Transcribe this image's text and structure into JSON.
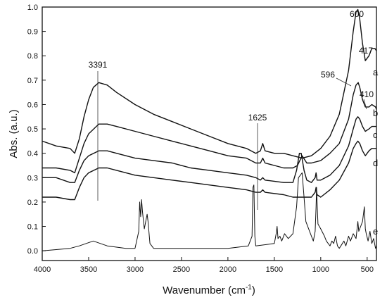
{
  "chart_data": {
    "type": "line",
    "xlabel": "Wavenumber (cm-1)",
    "xlabel_main": "Wavenumber (cm",
    "xlabel_sup": "-1",
    "xlabel_close": ")",
    "ylabel": "Abs. (a.u.)",
    "xlim": [
      4000,
      400
    ],
    "x_reversed": true,
    "ylim": [
      -0.04,
      1.0
    ],
    "xticks": [
      4000,
      3500,
      3000,
      2500,
      2000,
      1500,
      1000,
      500
    ],
    "yticks": [
      "0.0",
      "0.1",
      "0.2",
      "0.3",
      "0.4",
      "0.5",
      "0.6",
      "0.7",
      "0.8",
      "0.9",
      "1.0"
    ],
    "grid": false,
    "series": [
      {
        "name": "a",
        "points": [
          [
            4000,
            0.45
          ],
          [
            3850,
            0.43
          ],
          [
            3700,
            0.42
          ],
          [
            3650,
            0.4
          ],
          [
            3600,
            0.46
          ],
          [
            3550,
            0.55
          ],
          [
            3500,
            0.62
          ],
          [
            3450,
            0.67
          ],
          [
            3391,
            0.69
          ],
          [
            3300,
            0.68
          ],
          [
            3200,
            0.65
          ],
          [
            3000,
            0.6
          ],
          [
            2800,
            0.56
          ],
          [
            2600,
            0.53
          ],
          [
            2400,
            0.5
          ],
          [
            2200,
            0.47
          ],
          [
            2000,
            0.44
          ],
          [
            1800,
            0.42
          ],
          [
            1700,
            0.4
          ],
          [
            1650,
            0.41
          ],
          [
            1625,
            0.44
          ],
          [
            1600,
            0.41
          ],
          [
            1500,
            0.4
          ],
          [
            1400,
            0.4
          ],
          [
            1300,
            0.39
          ],
          [
            1200,
            0.38
          ],
          [
            1100,
            0.39
          ],
          [
            1000,
            0.42
          ],
          [
            900,
            0.47
          ],
          [
            800,
            0.56
          ],
          [
            700,
            0.74
          ],
          [
            650,
            0.9
          ],
          [
            620,
            0.98
          ],
          [
            600,
            0.99
          ],
          [
            580,
            0.95
          ],
          [
            550,
            0.85
          ],
          [
            520,
            0.78
          ],
          [
            480,
            0.8
          ],
          [
            450,
            0.83
          ],
          [
            417,
            0.83
          ],
          [
            400,
            0.82
          ]
        ]
      },
      {
        "name": "b",
        "points": [
          [
            4000,
            0.34
          ],
          [
            3850,
            0.34
          ],
          [
            3700,
            0.33
          ],
          [
            3650,
            0.32
          ],
          [
            3600,
            0.38
          ],
          [
            3550,
            0.44
          ],
          [
            3500,
            0.48
          ],
          [
            3391,
            0.52
          ],
          [
            3300,
            0.52
          ],
          [
            3200,
            0.51
          ],
          [
            3000,
            0.49
          ],
          [
            2800,
            0.47
          ],
          [
            2600,
            0.45
          ],
          [
            2400,
            0.43
          ],
          [
            2200,
            0.41
          ],
          [
            2000,
            0.39
          ],
          [
            1800,
            0.38
          ],
          [
            1700,
            0.36
          ],
          [
            1650,
            0.36
          ],
          [
            1625,
            0.38
          ],
          [
            1600,
            0.36
          ],
          [
            1500,
            0.35
          ],
          [
            1400,
            0.34
          ],
          [
            1300,
            0.34
          ],
          [
            1250,
            0.35
          ],
          [
            1200,
            0.39
          ],
          [
            1150,
            0.36
          ],
          [
            1100,
            0.36
          ],
          [
            1000,
            0.37
          ],
          [
            900,
            0.4
          ],
          [
            800,
            0.44
          ],
          [
            700,
            0.54
          ],
          [
            650,
            0.64
          ],
          [
            620,
            0.68
          ],
          [
            596,
            0.69
          ],
          [
            580,
            0.67
          ],
          [
            550,
            0.62
          ],
          [
            520,
            0.59
          ],
          [
            480,
            0.59
          ],
          [
            450,
            0.6
          ],
          [
            410,
            0.59
          ],
          [
            400,
            0.58
          ]
        ]
      },
      {
        "name": "c",
        "points": [
          [
            4000,
            0.3
          ],
          [
            3850,
            0.3
          ],
          [
            3700,
            0.28
          ],
          [
            3650,
            0.28
          ],
          [
            3600,
            0.33
          ],
          [
            3550,
            0.37
          ],
          [
            3500,
            0.39
          ],
          [
            3391,
            0.41
          ],
          [
            3300,
            0.41
          ],
          [
            3200,
            0.4
          ],
          [
            3000,
            0.38
          ],
          [
            2800,
            0.37
          ],
          [
            2600,
            0.36
          ],
          [
            2400,
            0.34
          ],
          [
            2200,
            0.33
          ],
          [
            2000,
            0.32
          ],
          [
            1800,
            0.31
          ],
          [
            1700,
            0.3
          ],
          [
            1650,
            0.29
          ],
          [
            1625,
            0.3
          ],
          [
            1600,
            0.29
          ],
          [
            1400,
            0.28
          ],
          [
            1300,
            0.28
          ],
          [
            1260,
            0.33
          ],
          [
            1230,
            0.4
          ],
          [
            1210,
            0.4
          ],
          [
            1180,
            0.33
          ],
          [
            1150,
            0.29
          ],
          [
            1100,
            0.28
          ],
          [
            1060,
            0.3
          ],
          [
            1050,
            0.32
          ],
          [
            1040,
            0.29
          ],
          [
            1000,
            0.29
          ],
          [
            900,
            0.31
          ],
          [
            800,
            0.35
          ],
          [
            700,
            0.43
          ],
          [
            650,
            0.5
          ],
          [
            620,
            0.54
          ],
          [
            600,
            0.55
          ],
          [
            580,
            0.54
          ],
          [
            550,
            0.51
          ],
          [
            520,
            0.49
          ],
          [
            480,
            0.5
          ],
          [
            450,
            0.51
          ],
          [
            400,
            0.51
          ]
        ]
      },
      {
        "name": "d",
        "points": [
          [
            4000,
            0.22
          ],
          [
            3850,
            0.22
          ],
          [
            3700,
            0.21
          ],
          [
            3650,
            0.21
          ],
          [
            3600,
            0.26
          ],
          [
            3550,
            0.3
          ],
          [
            3500,
            0.32
          ],
          [
            3391,
            0.34
          ],
          [
            3300,
            0.34
          ],
          [
            3200,
            0.33
          ],
          [
            3000,
            0.31
          ],
          [
            2800,
            0.3
          ],
          [
            2600,
            0.29
          ],
          [
            2400,
            0.28
          ],
          [
            2200,
            0.27
          ],
          [
            2000,
            0.26
          ],
          [
            1800,
            0.25
          ],
          [
            1700,
            0.24
          ],
          [
            1650,
            0.24
          ],
          [
            1625,
            0.25
          ],
          [
            1600,
            0.24
          ],
          [
            1400,
            0.23
          ],
          [
            1300,
            0.22
          ],
          [
            1260,
            0.22
          ],
          [
            1200,
            0.22
          ],
          [
            1100,
            0.22
          ],
          [
            1060,
            0.24
          ],
          [
            1050,
            0.26
          ],
          [
            1040,
            0.23
          ],
          [
            1000,
            0.22
          ],
          [
            900,
            0.25
          ],
          [
            800,
            0.29
          ],
          [
            700,
            0.36
          ],
          [
            650,
            0.42
          ],
          [
            620,
            0.44
          ],
          [
            600,
            0.45
          ],
          [
            580,
            0.44
          ],
          [
            550,
            0.41
          ],
          [
            520,
            0.39
          ],
          [
            480,
            0.41
          ],
          [
            450,
            0.42
          ],
          [
            400,
            0.42
          ]
        ]
      },
      {
        "name": "e",
        "points": [
          [
            4000,
            0.0
          ],
          [
            3700,
            0.01
          ],
          [
            3600,
            0.02
          ],
          [
            3450,
            0.04
          ],
          [
            3300,
            0.02
          ],
          [
            3100,
            0.01
          ],
          [
            3000,
            0.01
          ],
          [
            2960,
            0.08
          ],
          [
            2950,
            0.2
          ],
          [
            2940,
            0.14
          ],
          [
            2930,
            0.21
          ],
          [
            2920,
            0.16
          ],
          [
            2900,
            0.09
          ],
          [
            2870,
            0.15
          ],
          [
            2860,
            0.12
          ],
          [
            2840,
            0.03
          ],
          [
            2800,
            0.01
          ],
          [
            2000,
            0.01
          ],
          [
            1780,
            0.02
          ],
          [
            1740,
            0.06
          ],
          [
            1730,
            0.26
          ],
          [
            1720,
            0.27
          ],
          [
            1710,
            0.06
          ],
          [
            1700,
            0.02
          ],
          [
            1500,
            0.03
          ],
          [
            1480,
            0.07
          ],
          [
            1470,
            0.1
          ],
          [
            1460,
            0.05
          ],
          [
            1440,
            0.06
          ],
          [
            1420,
            0.04
          ],
          [
            1390,
            0.07
          ],
          [
            1350,
            0.05
          ],
          [
            1300,
            0.07
          ],
          [
            1260,
            0.18
          ],
          [
            1240,
            0.3
          ],
          [
            1200,
            0.32
          ],
          [
            1180,
            0.22
          ],
          [
            1160,
            0.12
          ],
          [
            1150,
            0.11
          ],
          [
            1100,
            0.06
          ],
          [
            1080,
            0.04
          ],
          [
            1060,
            0.08
          ],
          [
            1050,
            0.18
          ],
          [
            1045,
            0.26
          ],
          [
            1040,
            0.2
          ],
          [
            1030,
            0.11
          ],
          [
            1000,
            0.09
          ],
          [
            960,
            0.06
          ],
          [
            940,
            0.04
          ],
          [
            900,
            0.02
          ],
          [
            880,
            0.04
          ],
          [
            860,
            0.03
          ],
          [
            840,
            0.06
          ],
          [
            820,
            0.02
          ],
          [
            800,
            0.01
          ],
          [
            750,
            0.04
          ],
          [
            730,
            0.02
          ],
          [
            700,
            0.06
          ],
          [
            680,
            0.04
          ],
          [
            650,
            0.07
          ],
          [
            620,
            0.05
          ],
          [
            600,
            0.12
          ],
          [
            590,
            0.08
          ],
          [
            570,
            0.1
          ],
          [
            550,
            0.12
          ],
          [
            530,
            0.18
          ],
          [
            520,
            0.09
          ],
          [
            510,
            0.07
          ],
          [
            490,
            0.04
          ],
          [
            470,
            0.08
          ],
          [
            450,
            0.03
          ],
          [
            430,
            0.05
          ],
          [
            410,
            0.01
          ],
          [
            400,
            0.02
          ]
        ]
      }
    ],
    "annotations": [
      {
        "text": "3391",
        "x": 3391
      },
      {
        "text": "1625",
        "x": 1625
      },
      {
        "text": "600",
        "x": 600
      },
      {
        "text": "417",
        "x": 417
      },
      {
        "text": "596",
        "x": 596
      },
      {
        "text": "410",
        "x": 410
      }
    ]
  }
}
